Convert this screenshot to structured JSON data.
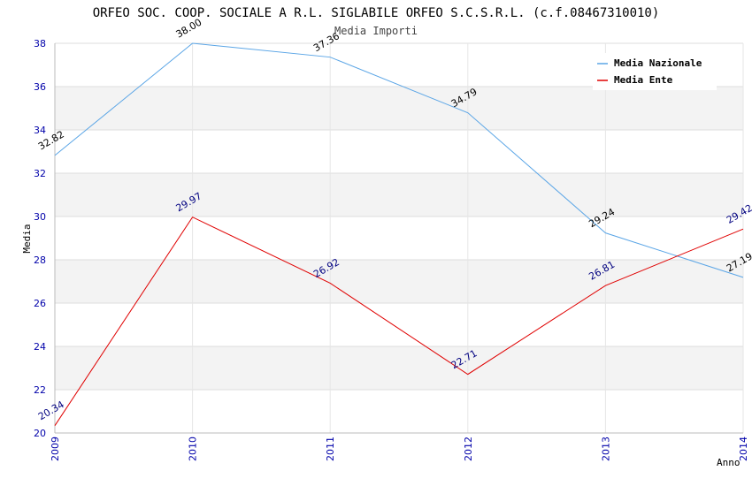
{
  "chart_data": {
    "type": "line",
    "title": "ORFEO SOC. COOP. SOCIALE A R.L. SIGLABILE ORFEO S.C.S.R.L. (c.f.08467310010)",
    "subtitle": "Media Importi",
    "xlabel": "Anno",
    "ylabel": "Media",
    "ylim": [
      20,
      38
    ],
    "yticks": [
      "20",
      "22",
      "24",
      "26",
      "28",
      "30",
      "32",
      "34",
      "36",
      "38"
    ],
    "categories": [
      "2009",
      "2010",
      "2011",
      "2012",
      "2013",
      "2014"
    ],
    "grid": true,
    "legend_position": "top-right",
    "series": [
      {
        "name": "Media Nazionale",
        "color": "#5aa5e6",
        "label_color": "#000000",
        "values": [
          32.82,
          38.0,
          37.36,
          34.79,
          29.24,
          27.19
        ],
        "labels": [
          "32.82",
          "38.00",
          "37.36",
          "34.79",
          "29.24",
          "27.19"
        ]
      },
      {
        "name": "Media Ente",
        "color": "#e00000",
        "label_color": "#000080",
        "values": [
          20.34,
          29.97,
          26.92,
          22.71,
          26.81,
          29.42
        ],
        "labels": [
          "20.34",
          "29.97",
          "26.92",
          "22.71",
          "26.81",
          "29.42"
        ]
      }
    ]
  }
}
